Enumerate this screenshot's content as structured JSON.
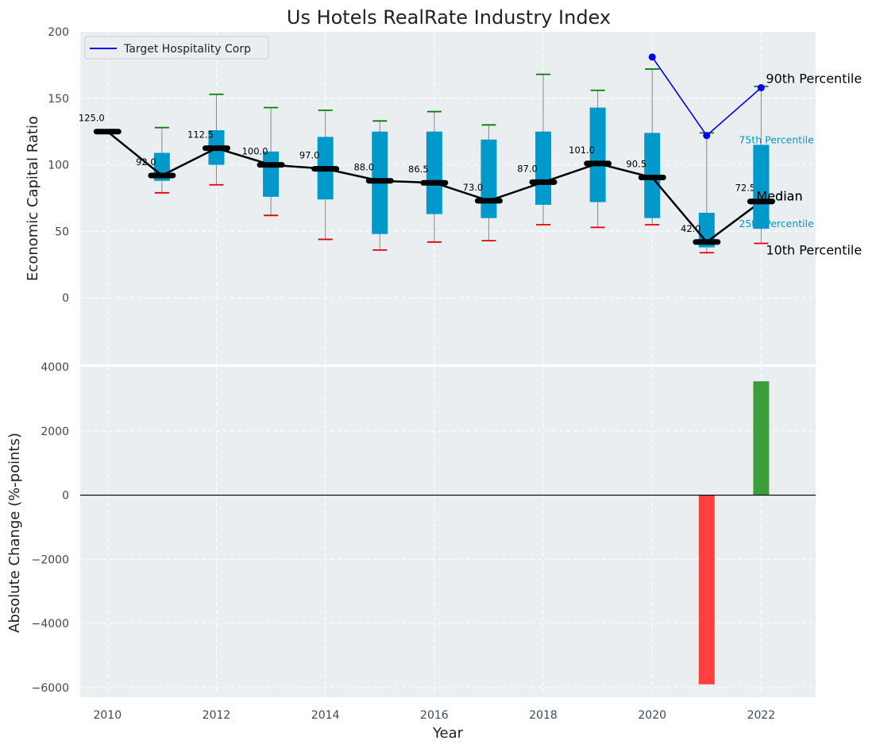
{
  "chart_data": [
    {
      "type": "box",
      "title": "Us Hotels RealRate Industry Index",
      "ylabel": "Economic Capital Ratio",
      "xlabel": "",
      "xlim": [
        2009.5,
        2023
      ],
      "ylim": [
        -50,
        200
      ],
      "yticks": [
        0,
        50,
        100,
        150,
        200
      ],
      "years": [
        2010,
        2011,
        2012,
        2013,
        2014,
        2015,
        2016,
        2017,
        2018,
        2019,
        2020,
        2021,
        2022
      ],
      "median": [
        125.0,
        92.0,
        112.5,
        100.0,
        97.0,
        88.0,
        86.5,
        73.0,
        87.0,
        101.0,
        90.5,
        42.0,
        72.5
      ],
      "median_labels": [
        "125.0",
        "92.0",
        "112.5",
        "100.0",
        "97.0",
        "88.0",
        "86.5",
        "73.0",
        "87.0",
        "101.0",
        "90.5",
        "42.0",
        "72.5"
      ],
      "q_low": [
        null,
        88,
        100,
        76,
        74,
        48,
        63,
        60,
        70,
        72,
        60,
        38,
        52
      ],
      "q_high": [
        null,
        109,
        126,
        110,
        121,
        125,
        125,
        119,
        125,
        143,
        124,
        64,
        115
      ],
      "p10": [
        null,
        79,
        85,
        62,
        44,
        36,
        42,
        43,
        55,
        53,
        55,
        34,
        41
      ],
      "p90": [
        null,
        128,
        153,
        143,
        141,
        133,
        140,
        130,
        168,
        156,
        172,
        124,
        159
      ],
      "company": {
        "name": "Target Hospitality Corp",
        "x": [
          2020,
          2021,
          2022
        ],
        "y": [
          181,
          122,
          158
        ]
      },
      "legend": {
        "label": "Target Hospitality Corp",
        "position": "upper-left"
      },
      "annotations": {
        "p90": "90th Percentile",
        "p75": "75th Percentile",
        "median": "Median",
        "p25": "25th Percentile",
        "p10": "10th Percentile"
      },
      "colors": {
        "box": "#0099cc",
        "median_line": "#000000",
        "company_line": "#0000ee",
        "p90_cap": "#008000",
        "p10_cap": "#e00000",
        "whisker": "#888888",
        "panel_bg": "#eaeef0"
      }
    },
    {
      "type": "bar",
      "title": "",
      "ylabel": "Absolute Change (%-points)",
      "xlabel": "Year",
      "xlim": [
        2009.5,
        2023
      ],
      "ylim": [
        -6300,
        4000
      ],
      "yticks": [
        -6000,
        -4000,
        -2000,
        0,
        2000,
        4000
      ],
      "xticks": [
        2010,
        2012,
        2014,
        2016,
        2018,
        2020,
        2022
      ],
      "x": [
        2021,
        2022
      ],
      "values": [
        -5900,
        3550
      ],
      "colors": {
        "negative": "#ff4040",
        "positive": "#3a9e3a"
      }
    }
  ]
}
